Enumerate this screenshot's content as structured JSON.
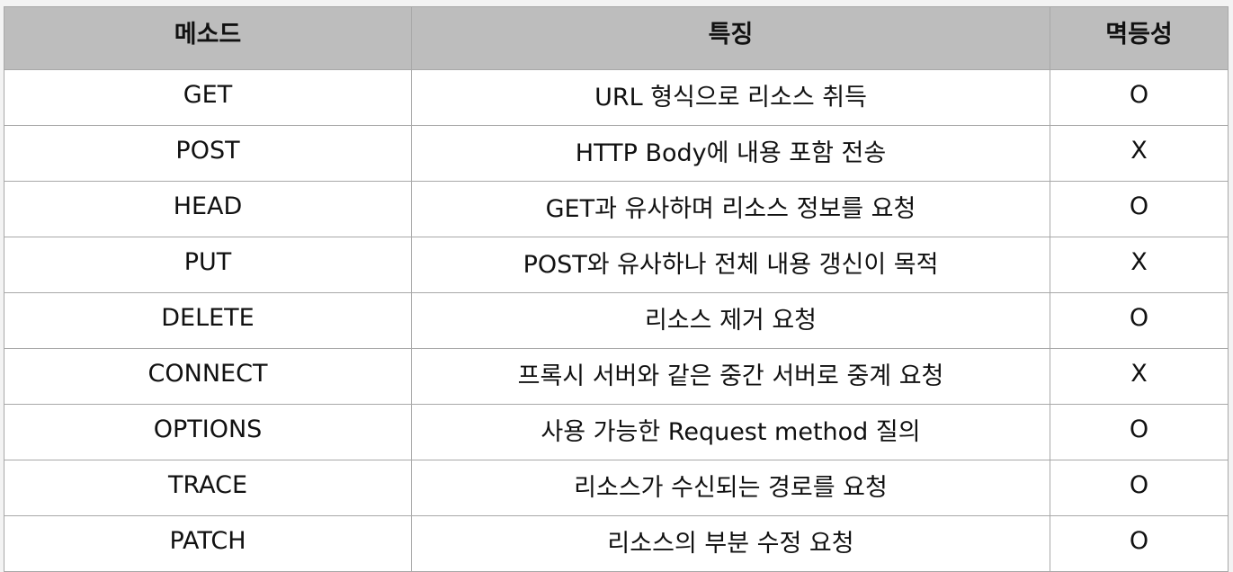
{
  "headers": [
    "메소드",
    "특징",
    "멱등성"
  ],
  "rows": [
    {
      "method": "GET",
      "feature": "URL 형식으로 리소스 취득",
      "idempotent": "O"
    },
    {
      "method": "POST",
      "feature": "HTTP Body에 내용 포함 전송",
      "idempotent": "X"
    },
    {
      "method": "HEAD",
      "feature": "GET과 유사하며 리소스 정보를 요청",
      "idempotent": "O"
    },
    {
      "method": "PUT",
      "feature": "POST와 유사하나 전체 내용 갱신이 목적",
      "idempotent": "X"
    },
    {
      "method": "DELETE",
      "feature": "리소스 제거 요청",
      "idempotent": "O"
    },
    {
      "method": "CONNECT",
      "feature": "프록시 서버와 같은 중간 서버로 중계 요청",
      "idempotent": "X"
    },
    {
      "method": "OPTIONS",
      "feature": "사용 가능한 Request method 질의",
      "idempotent": "O"
    },
    {
      "method": "TRACE",
      "feature": "리소스가 수신되는 경로를 요청",
      "idempotent": "O"
    },
    {
      "method": "PATCH",
      "feature": "리소스의 부분 수정 요청",
      "idempotent": "O"
    }
  ]
}
